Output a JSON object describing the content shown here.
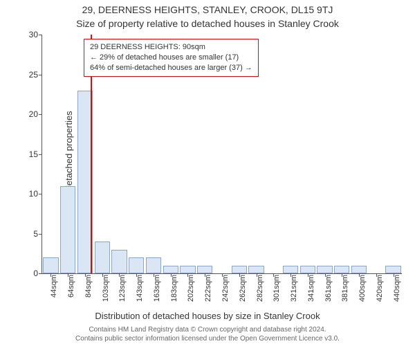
{
  "titles": {
    "line1": "29, DEERNESS HEIGHTS, STANLEY, CROOK, DL15 9TJ",
    "line2": "Size of property relative to detached houses in Stanley Crook"
  },
  "axes": {
    "ylabel": "Number of detached properties",
    "xlabel": "Distribution of detached houses by size in Stanley Crook"
  },
  "footer": {
    "line1": "Contains HM Land Registry data © Crown copyright and database right 2024.",
    "line2": "Contains public sector information licensed under the Open Government Licence v3.0."
  },
  "chart": {
    "type": "bar",
    "background_color": "#ffffff",
    "bar_fill": "#dbe6f5",
    "bar_border": "#8ca6c6",
    "highlight_color": "#cc1111",
    "axis_color": "#555555",
    "text_color": "#333333",
    "title_fontsize": 14,
    "label_fontsize": 13,
    "tick_fontsize": 12,
    "xtick_fontsize": 11,
    "ylim": [
      0,
      30
    ],
    "ytick_step": 5,
    "yticks": [
      0,
      5,
      10,
      15,
      20,
      25,
      30
    ],
    "bar_width": 0.9,
    "categories": [
      "44sqm",
      "64sqm",
      "84sqm",
      "103sqm",
      "123sqm",
      "143sqm",
      "163sqm",
      "183sqm",
      "202sqm",
      "222sqm",
      "242sqm",
      "262sqm",
      "282sqm",
      "301sqm",
      "321sqm",
      "341sqm",
      "361sqm",
      "381sqm",
      "400sqm",
      "420sqm",
      "440sqm"
    ],
    "values": [
      2,
      11,
      23,
      4,
      3,
      2,
      2,
      1,
      1,
      1,
      0,
      1,
      1,
      0,
      1,
      1,
      1,
      1,
      1,
      0,
      1
    ],
    "highlight": {
      "x_index": 2.35,
      "info": {
        "line1": "29 DEERNESS HEIGHTS: 90sqm",
        "line2": "← 29% of detached houses are smaller (17)",
        "line3": "64% of semi-detached houses are larger (37) →"
      }
    }
  }
}
